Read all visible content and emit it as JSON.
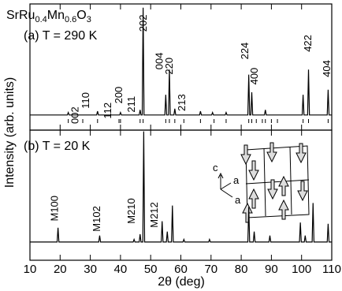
{
  "chart_data": [
    {
      "type": "line",
      "title": [
        "SrRu",
        "0.4",
        "Mn",
        "0.6",
        "O",
        "3"
      ],
      "subtitle": "(a) T = 290 K",
      "xlim": [
        10,
        110
      ],
      "xticks": [
        10,
        20,
        30,
        40,
        50,
        60,
        70,
        80,
        90,
        100,
        110
      ],
      "ylim": [
        0,
        100
      ],
      "series": [
        {
          "color": "#000000",
          "x": [
            10,
            22.4,
            22.7,
            23.0,
            32.1,
            32.4,
            32.7,
            39.7,
            40,
            40.3,
            46.2,
            46.5,
            46.8,
            47.2,
            47.5,
            47.8,
            54.7,
            55,
            55.3,
            55.9,
            56.2,
            56.5,
            57.7,
            58,
            58.3,
            66.2,
            66.5,
            66.8,
            70.2,
            70.5,
            70.8,
            74.7,
            75,
            75.3,
            82.2,
            82.5,
            82.8,
            83.2,
            83.5,
            83.8,
            87.7,
            88,
            88.3,
            100.2,
            100.5,
            100.8,
            102,
            102.3,
            102.6,
            108.5,
            108.8,
            109.1,
            110
          ],
          "values": [
            12,
            12,
            14,
            12,
            12,
            15,
            12,
            12,
            14,
            12,
            12,
            16,
            12,
            12,
            97,
            12,
            12,
            28,
            12,
            12,
            48,
            12,
            12,
            17,
            12,
            12,
            15,
            12,
            12,
            14,
            12,
            12,
            14,
            12,
            12,
            44,
            12,
            12,
            30,
            12,
            12,
            16,
            12,
            12,
            28,
            12,
            12,
            48,
            12,
            12,
            32,
            12,
            12
          ]
        }
      ],
      "bragg_positions": [
        22.7,
        27.5,
        32.4,
        39.5,
        40,
        46.5,
        47.5,
        55,
        56.2,
        58,
        61,
        66.5,
        71,
        75,
        82.5,
        83.5,
        85,
        87,
        88,
        90,
        92,
        100.5,
        102.3,
        108.8
      ],
      "annotations": [
        {
          "text": "002",
          "x": 26,
          "y": 5
        },
        {
          "text": "110",
          "x": 29.6,
          "y": 17
        },
        {
          "text": "112",
          "x": 36.9,
          "y": 9
        },
        {
          "text": "200",
          "x": 40.5,
          "y": 21
        },
        {
          "text": "211",
          "x": 44.7,
          "y": 14
        },
        {
          "text": "202",
          "x": 48.6,
          "y": 78
        },
        {
          "text": "004",
          "x": 54,
          "y": 48
        },
        {
          "text": "220",
          "x": 57.2,
          "y": 44
        },
        {
          "text": "213",
          "x": 61.5,
          "y": 15
        },
        {
          "text": "224",
          "x": 82.3,
          "y": 56
        },
        {
          "text": "400",
          "x": 85.5,
          "y": 36
        },
        {
          "text": "422",
          "x": 103.2,
          "y": 62
        },
        {
          "text": "404",
          "x": 109.5,
          "y": 42
        }
      ]
    },
    {
      "type": "line",
      "subtitle": "(b) T = 20 K",
      "xlabel": "2θ (deg)",
      "ylabel": "Intensity (arb. units)",
      "xlim": [
        10,
        110
      ],
      "xticks": [
        10,
        20,
        30,
        40,
        50,
        60,
        70,
        80,
        90,
        100,
        110
      ],
      "ylim": [
        0,
        100
      ],
      "series": [
        {
          "color": "#000000",
          "x": [
            10,
            19.0,
            19.3,
            19.6,
            32.8,
            33.1,
            33.4,
            44.2,
            44.5,
            44.8,
            46.2,
            46.5,
            46.8,
            47.4,
            47.7,
            48.0,
            53.5,
            53.8,
            54.1,
            55.2,
            55.5,
            55.8,
            56.9,
            57.2,
            57.5,
            60.7,
            61,
            61.3,
            69.2,
            69.5,
            69.8,
            82.2,
            82.5,
            82.8,
            84.0,
            84.3,
            84.6,
            89.2,
            89.5,
            89.8,
            99.3,
            99.6,
            99.9,
            100.9,
            101.2,
            101.5,
            103.5,
            103.8,
            104.1,
            108.5,
            108.8,
            109.1,
            110
          ],
          "values": [
            14,
            14,
            25,
            14,
            14,
            19,
            14,
            14,
            16,
            14,
            14,
            20,
            14,
            14,
            99,
            14,
            14,
            30,
            14,
            14,
            22,
            14,
            14,
            42,
            14,
            14,
            16,
            14,
            14,
            16,
            14,
            14,
            41,
            14,
            14,
            22,
            14,
            14,
            19,
            14,
            14,
            29,
            14,
            14,
            19,
            14,
            14,
            44,
            14,
            14,
            28,
            14,
            14
          ]
        }
      ],
      "annotations": [
        {
          "text": "M100",
          "x": 19.3,
          "y": 30
        },
        {
          "text": "M102",
          "x": 33.2,
          "y": 22
        },
        {
          "text": "M210",
          "x": 44.7,
          "y": 28
        },
        {
          "text": "M212",
          "x": 52.3,
          "y": 25
        }
      ]
    }
  ],
  "inset": {
    "labels": [
      "c",
      "a",
      "a"
    ]
  }
}
